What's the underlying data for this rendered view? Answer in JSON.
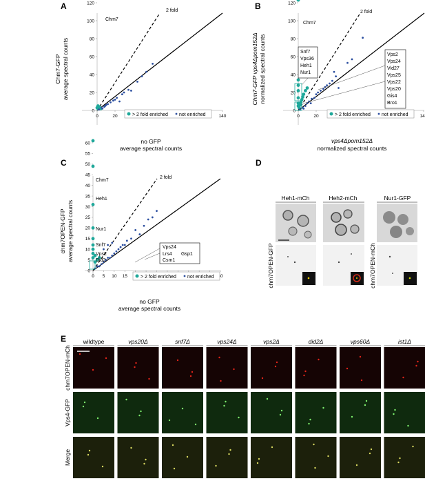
{
  "panels": {
    "A": {
      "letter": "A",
      "ylabel_line1": "Chm7-GFP",
      "ylabel_line2": "average spectral counts",
      "xlabel_line1": "no GFP",
      "xlabel_line2": "average spectral counts",
      "fold_label": "2 fold",
      "highlight_label": "Chm7",
      "legend_enriched": "> 2 fold enriched",
      "legend_not": "not enriched"
    },
    "B": {
      "letter": "B",
      "ylabel_line1": "Chm7-GFP vps4Δpom152Δ",
      "ylabel_line2": "normalized spectral counts",
      "xlabel_line1": "vps4Δpom152Δ",
      "xlabel_line2": "normalized spectral counts",
      "fold_label": "2 fold",
      "highlight_label": "Chm7",
      "box_left": [
        "Snf7",
        "Vps36",
        "Heh1",
        "Nur1"
      ],
      "box_right": [
        "Vps2",
        "Vps24",
        "Vid27",
        "Vps25",
        "Vps22",
        "Vps20",
        "Gis4",
        "Bro1"
      ],
      "legend_enriched": "> 2 fold enriched",
      "legend_not": "not enriched"
    },
    "C": {
      "letter": "C",
      "ylabel_line1": "chm7OPEN-GFP",
      "ylabel_line2": "average spectral counts",
      "xlabel_line1": "no GFP",
      "xlabel_line2": "average spectral counts",
      "fold_label": "2 fold",
      "labels": [
        "Chm7",
        "Heh1",
        "Nur1",
        "Snf7",
        "Vps2",
        "Did2"
      ],
      "box": [
        "Vps24",
        "Lrs4",
        "Gsp1",
        "Csm1"
      ],
      "legend_enriched": "> 2 fold enriched",
      "legend_not": "not enriched"
    },
    "D": {
      "letter": "D",
      "columns": [
        "Heh1-mCh",
        "Heh2-mCh",
        "Nur1-GFP"
      ],
      "row_label": "chm7OPEN-GFP",
      "row_label_alt": "chm7OPEN-mCh"
    },
    "E": {
      "letter": "E",
      "columns": [
        "wildtype",
        "vps20Δ",
        "snf7Δ",
        "vps24Δ",
        "vps2Δ",
        "did2Δ",
        "vps60Δ",
        "ist1Δ"
      ],
      "rows": [
        "chm7OPEN-mCh",
        "Vps4-GFP",
        "Merge"
      ]
    }
  },
  "chart_data": [
    {
      "type": "scatter",
      "title": "",
      "xlabel": "no GFP average spectral counts",
      "ylabel": "Chm7-GFP average spectral counts",
      "xlim": [
        -20,
        140
      ],
      "ylim": [
        -20,
        140
      ],
      "xticks": [
        0,
        20,
        40,
        60,
        80,
        100,
        120,
        140
      ],
      "yticks": [
        0,
        20,
        40,
        60,
        80,
        100,
        120,
        140
      ],
      "reference_lines": [
        "1:1",
        "2 fold"
      ],
      "series": [
        {
          "name": "> 2 fold enriched",
          "color": "#1fa89a",
          "points": [
            [
              0,
              131
            ],
            [
              0,
              3
            ],
            [
              1,
              2
            ],
            [
              2,
              4
            ],
            [
              3,
              3
            ],
            [
              1,
              5
            ],
            [
              4,
              2
            ]
          ]
        },
        {
          "name": "not enriched",
          "color": "#2c4fa0",
          "points": [
            [
              2,
              1
            ],
            [
              5,
              3
            ],
            [
              8,
              4
            ],
            [
              10,
              6
            ],
            [
              12,
              7
            ],
            [
              15,
              9
            ],
            [
              18,
              11
            ],
            [
              20,
              12
            ],
            [
              22,
              14
            ],
            [
              25,
              10
            ],
            [
              28,
              18
            ],
            [
              30,
              20
            ],
            [
              35,
              23
            ],
            [
              38,
              22
            ],
            [
              45,
              32
            ],
            [
              50,
              38
            ],
            [
              55,
              43
            ],
            [
              62,
              52
            ],
            [
              6,
              2
            ],
            [
              9,
              5
            ]
          ]
        }
      ]
    },
    {
      "type": "scatter",
      "title": "",
      "xlabel": "vps4Δpom152Δ normalized spectral counts",
      "ylabel": "Chm7-GFP vps4Δpom152Δ normalized spectral counts",
      "xlim": [
        -20,
        140
      ],
      "ylim": [
        -20,
        140
      ],
      "xticks": [
        0,
        20,
        40,
        60,
        80,
        100,
        120,
        140
      ],
      "yticks": [
        0,
        20,
        40,
        60,
        80,
        100,
        120,
        140
      ],
      "reference_lines": [
        "1:1",
        "2 fold"
      ],
      "series": [
        {
          "name": "> 2 fold enriched",
          "color": "#1fa89a",
          "points": [
            [
              0,
              123
            ],
            [
              0,
              34
            ],
            [
              0,
              28
            ],
            [
              0,
              22
            ],
            [
              0,
              14
            ],
            [
              0,
              8
            ],
            [
              0,
              5
            ],
            [
              1,
              3
            ],
            [
              2,
              6
            ],
            [
              3,
              9
            ],
            [
              4,
              12
            ],
            [
              5,
              15
            ],
            [
              6,
              18
            ],
            [
              8,
              22
            ],
            [
              10,
              25
            ]
          ]
        },
        {
          "name": "not enriched",
          "color": "#2c4fa0",
          "points": [
            [
              2,
              1
            ],
            [
              5,
              3
            ],
            [
              8,
              5
            ],
            [
              10,
              8
            ],
            [
              12,
              10
            ],
            [
              15,
              13
            ],
            [
              18,
              14
            ],
            [
              20,
              18
            ],
            [
              22,
              20
            ],
            [
              25,
              22
            ],
            [
              28,
              24
            ],
            [
              30,
              26
            ],
            [
              32,
              28
            ],
            [
              35,
              30
            ],
            [
              38,
              33
            ],
            [
              40,
              43
            ],
            [
              42,
              38
            ],
            [
              45,
              25
            ],
            [
              55,
              53
            ],
            [
              60,
              57
            ],
            [
              72,
              81
            ],
            [
              6,
              2
            ],
            [
              14,
              8
            ]
          ]
        }
      ]
    },
    {
      "type": "scatter",
      "title": "",
      "xlabel": "no GFP average spectral counts",
      "ylabel": "chm7OPEN-GFP average spectral counts",
      "xlim": [
        -5,
        60
      ],
      "ylim": [
        -5,
        60
      ],
      "xticks": [
        0,
        5,
        10,
        15,
        20,
        25,
        30,
        35,
        40,
        45,
        50,
        55,
        60
      ],
      "yticks": [
        0,
        5,
        10,
        15,
        20,
        25,
        30,
        35,
        40,
        45,
        50,
        55,
        60
      ],
      "reference_lines": [
        "1:1",
        "2 fold"
      ],
      "series": [
        {
          "name": "> 2 fold enriched",
          "color": "#1fa89a",
          "points": [
            [
              0,
              61
            ],
            [
              0,
              49
            ],
            [
              0,
              31
            ],
            [
              0,
              20
            ],
            [
              0,
              15
            ],
            [
              0,
              12
            ],
            [
              0,
              10
            ],
            [
              0,
              8
            ],
            [
              1,
              7
            ],
            [
              0,
              6
            ],
            [
              2,
              5
            ],
            [
              1,
              4
            ],
            [
              3,
              6
            ]
          ]
        },
        {
          "name": "not enriched",
          "color": "#2c4fa0",
          "points": [
            [
              1,
              1
            ],
            [
              2,
              2
            ],
            [
              3,
              2
            ],
            [
              4,
              3
            ],
            [
              5,
              4
            ],
            [
              6,
              5
            ],
            [
              7,
              6
            ],
            [
              8,
              6
            ],
            [
              9,
              7
            ],
            [
              10,
              8
            ],
            [
              11,
              9
            ],
            [
              12,
              10
            ],
            [
              13,
              11
            ],
            [
              14,
              12
            ],
            [
              15,
              12
            ],
            [
              16,
              14
            ],
            [
              18,
              15
            ],
            [
              20,
              19
            ],
            [
              22,
              17
            ],
            [
              24,
              21
            ],
            [
              26,
              24
            ],
            [
              28,
              25
            ],
            [
              30,
              28
            ],
            [
              5,
              10
            ],
            [
              7,
              12
            ],
            [
              9,
              13
            ]
          ]
        }
      ]
    }
  ]
}
